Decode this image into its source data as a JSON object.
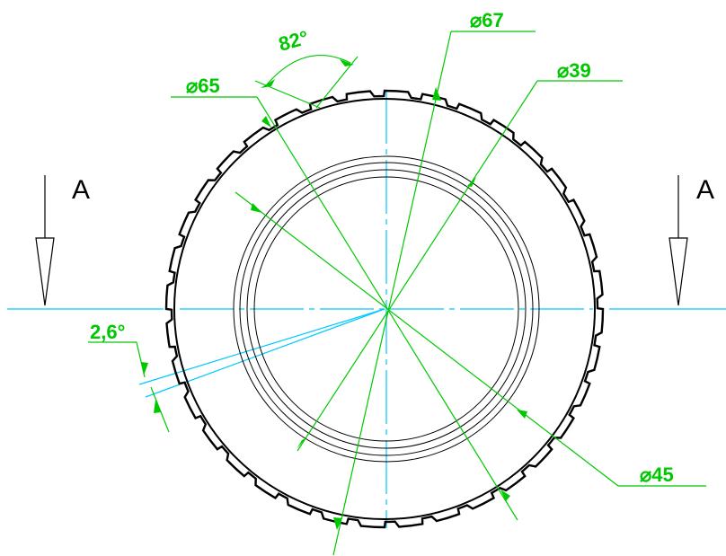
{
  "drawing": {
    "section_label_left": "A",
    "section_label_right": "A",
    "dimensions": {
      "d67": "⌀67",
      "d39": "⌀39",
      "d65": "⌀65",
      "d45": "⌀45",
      "angle_82": "82°",
      "angle_2_6": "2,6°"
    },
    "colors": {
      "outline": "#000000",
      "dimension": "#00c800",
      "centerline": "#00c8ff"
    }
  }
}
